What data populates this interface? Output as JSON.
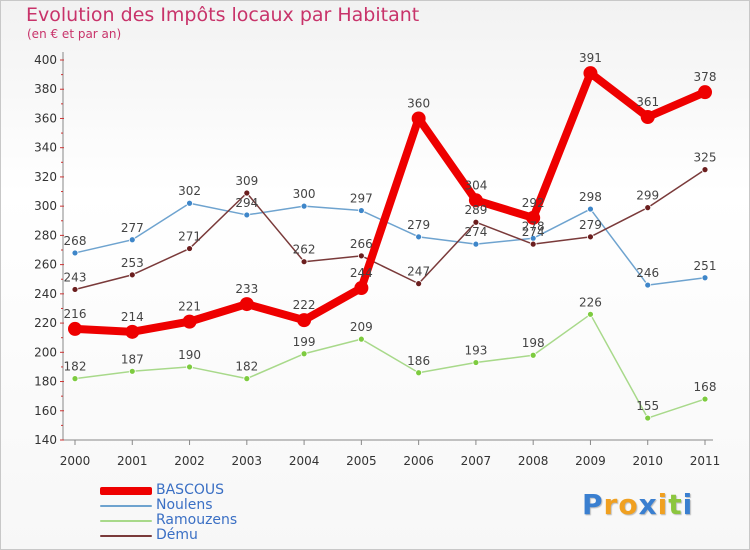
{
  "header": {
    "title": "Evolution des Impôts locaux par Habitant",
    "subtitle": "(en € et par an)"
  },
  "colors": {
    "title": "#c8336a",
    "legend_text": "#3a6fc4",
    "axis": "#888888"
  },
  "chart_data": {
    "type": "line",
    "title": "Evolution des Impôts locaux par Habitant",
    "ylabel": "(en € et par an)",
    "xlabel": "",
    "categories": [
      "2000",
      "2001",
      "2002",
      "2003",
      "2004",
      "2005",
      "2006",
      "2007",
      "2008",
      "2009",
      "2010",
      "2011"
    ],
    "ylim": [
      140,
      400
    ],
    "yticks": [
      "140",
      "160",
      "180",
      "200",
      "220",
      "240",
      "260",
      "280",
      "300",
      "320",
      "340",
      "360",
      "380",
      "400"
    ],
    "grid": false,
    "legend_position": "bottom-left",
    "series": [
      {
        "name": "BASCOUS",
        "color": "#ee0000",
        "point_color": "#ee0000",
        "values": [
          216,
          214,
          221,
          233,
          222,
          244,
          360,
          304,
          292,
          391,
          361,
          378
        ]
      },
      {
        "name": "Noulens",
        "color": "#6ea3cf",
        "point_color": "#3e86c9",
        "values": [
          268,
          277,
          302,
          294,
          300,
          297,
          279,
          274,
          278,
          298,
          246,
          251
        ]
      },
      {
        "name": "Ramouzens",
        "color": "#a8d98a",
        "point_color": "#7dcb3f",
        "values": [
          182,
          187,
          190,
          182,
          199,
          209,
          186,
          193,
          198,
          226,
          155,
          168
        ]
      },
      {
        "name": "Dému",
        "color": "#7a3a3a",
        "point_color": "#6b1e1e",
        "values": [
          243,
          253,
          271,
          309,
          262,
          266,
          247,
          289,
          274,
          279,
          299,
          325
        ]
      }
    ]
  },
  "legend": {
    "items": [
      "BASCOUS",
      "Noulens",
      "Ramouzens",
      "Dému"
    ]
  },
  "logo": {
    "letters": [
      "P",
      "r",
      "o",
      "x",
      "i",
      "t",
      "i"
    ],
    "colors": [
      "#3a7fd0",
      "#f0a020",
      "#f0a020",
      "#3a7fd0",
      "#f0a020",
      "#8cc63f",
      "#3a7fd0"
    ]
  }
}
